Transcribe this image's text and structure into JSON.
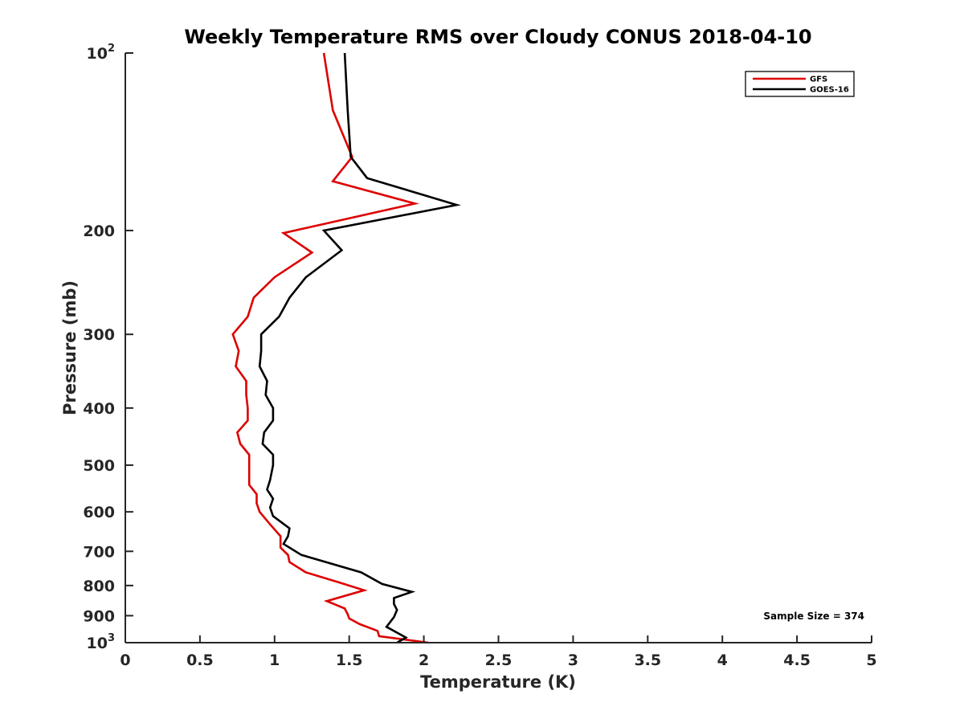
{
  "chart_data": {
    "type": "line",
    "title": "Weekly Temperature RMS over Cloudy CONUS 2018-04-10",
    "xlabel": "Temperature (K)",
    "ylabel": "Pressure (mb)",
    "xlim": [
      0,
      5
    ],
    "ylim": [
      100,
      1000
    ],
    "y_scale": "log",
    "y_reversed": true,
    "x_ticks": [
      "0",
      "0.5",
      "1",
      "1.5",
      "2",
      "2.5",
      "3",
      "3.5",
      "4",
      "4.5",
      "5"
    ],
    "y_ticks": [
      {
        "value": 100,
        "base": "10",
        "exp": "2"
      },
      {
        "value": 200,
        "label": "200"
      },
      {
        "value": 300,
        "label": "300"
      },
      {
        "value": 400,
        "label": "400"
      },
      {
        "value": 500,
        "label": "500"
      },
      {
        "value": 600,
        "label": "600"
      },
      {
        "value": 700,
        "label": "700"
      },
      {
        "value": 800,
        "label": "800"
      },
      {
        "value": 900,
        "label": "900"
      },
      {
        "value": 1000,
        "base": "10",
        "exp": "3"
      }
    ],
    "grid": false,
    "legend_position": "top-right",
    "annotation": "Sample Size = 374",
    "series": [
      {
        "name": "GFS",
        "color": "#dd0000",
        "points": [
          [
            1.33,
            100
          ],
          [
            1.39,
            125
          ],
          [
            1.52,
            150
          ],
          [
            1.39,
            165
          ],
          [
            1.94,
            180
          ],
          [
            1.06,
            202
          ],
          [
            1.25,
            218
          ],
          [
            1.0,
            240
          ],
          [
            0.86,
            260
          ],
          [
            0.82,
            280
          ],
          [
            0.72,
            300
          ],
          [
            0.76,
            320
          ],
          [
            0.74,
            340
          ],
          [
            0.81,
            360
          ],
          [
            0.81,
            380
          ],
          [
            0.82,
            400
          ],
          [
            0.82,
            420
          ],
          [
            0.75,
            440
          ],
          [
            0.77,
            460
          ],
          [
            0.83,
            480
          ],
          [
            0.83,
            500
          ],
          [
            0.83,
            540
          ],
          [
            0.88,
            560
          ],
          [
            0.88,
            580
          ],
          [
            0.9,
            600
          ],
          [
            0.97,
            630
          ],
          [
            1.04,
            660
          ],
          [
            1.04,
            690
          ],
          [
            1.09,
            710
          ],
          [
            1.1,
            730
          ],
          [
            1.21,
            760
          ],
          [
            1.43,
            790
          ],
          [
            1.6,
            815
          ],
          [
            1.35,
            850
          ],
          [
            1.47,
            875
          ],
          [
            1.49,
            895
          ],
          [
            1.5,
            910
          ],
          [
            1.57,
            930
          ],
          [
            1.69,
            955
          ],
          [
            1.7,
            975
          ],
          [
            2.03,
            1000
          ]
        ]
      },
      {
        "name": "GOES-16",
        "color": "#000000",
        "points": [
          [
            1.47,
            100
          ],
          [
            1.49,
            125
          ],
          [
            1.51,
            150
          ],
          [
            1.62,
            163
          ],
          [
            2.22,
            181
          ],
          [
            1.33,
            200
          ],
          [
            1.45,
            216
          ],
          [
            1.21,
            240
          ],
          [
            1.1,
            260
          ],
          [
            1.03,
            280
          ],
          [
            0.91,
            300
          ],
          [
            0.91,
            320
          ],
          [
            0.9,
            340
          ],
          [
            0.95,
            360
          ],
          [
            0.94,
            380
          ],
          [
            0.99,
            400
          ],
          [
            0.99,
            420
          ],
          [
            0.93,
            440
          ],
          [
            0.92,
            460
          ],
          [
            0.99,
            480
          ],
          [
            0.99,
            500
          ],
          [
            0.97,
            530
          ],
          [
            0.95,
            550
          ],
          [
            0.99,
            570
          ],
          [
            0.97,
            590
          ],
          [
            0.99,
            610
          ],
          [
            1.1,
            640
          ],
          [
            1.09,
            660
          ],
          [
            1.06,
            680
          ],
          [
            1.18,
            710
          ],
          [
            1.58,
            760
          ],
          [
            1.72,
            795
          ],
          [
            1.92,
            820
          ],
          [
            1.8,
            840
          ],
          [
            1.8,
            860
          ],
          [
            1.82,
            880
          ],
          [
            1.8,
            905
          ],
          [
            1.75,
            940
          ],
          [
            1.88,
            980
          ],
          [
            1.82,
            1000
          ]
        ]
      }
    ]
  }
}
